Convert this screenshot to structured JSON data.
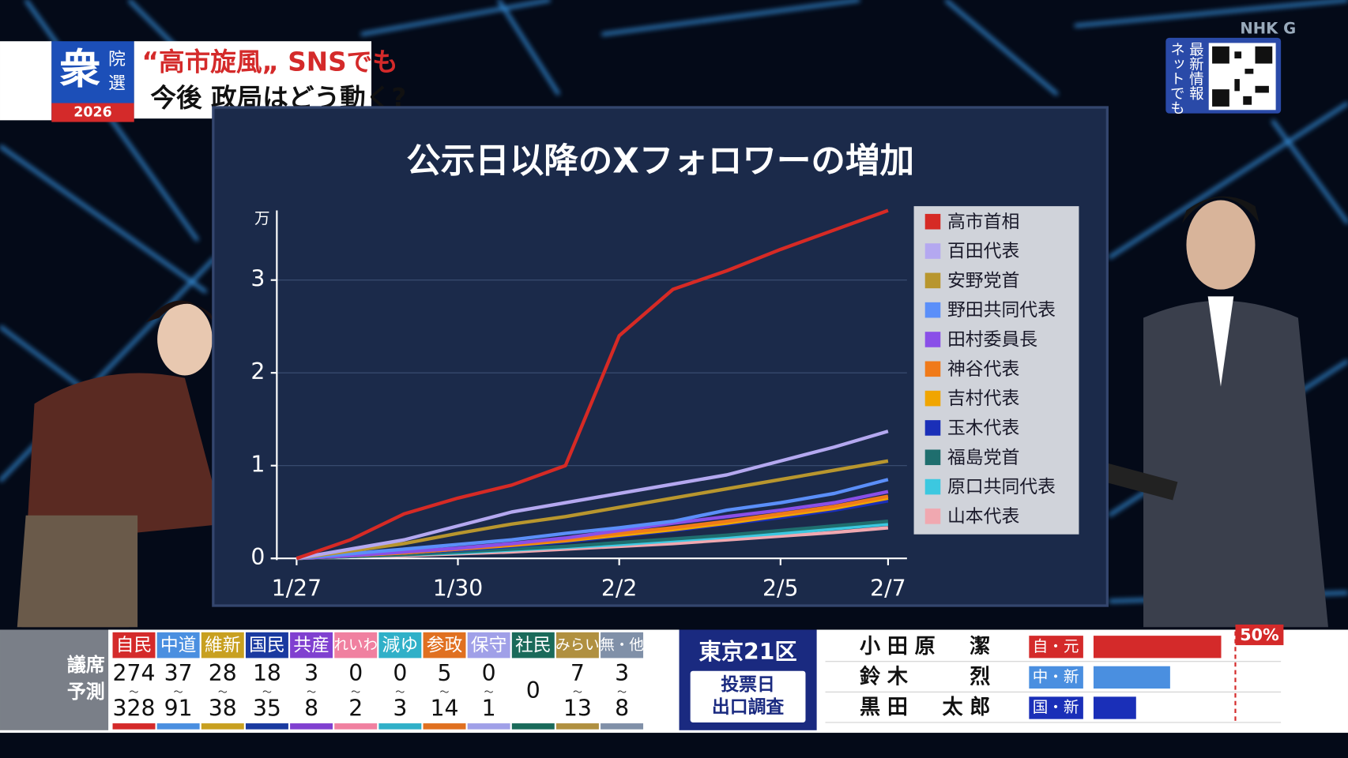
{
  "header": {
    "logo": {
      "main": "衆",
      "side": [
        "院",
        "選"
      ],
      "year": "2026"
    },
    "headline": [
      "“高市旋風„ SNSでも",
      "今後 政局はどう動く?"
    ]
  },
  "broadcaster": "NHK G",
  "qr_note": [
    "ネットでも",
    "最新情報"
  ],
  "chart_data": {
    "type": "line",
    "title": "公示日以降のXフォロワーの増加",
    "y_unit": "万",
    "categories": [
      "1/27",
      null,
      null,
      "1/30",
      null,
      null,
      "2/2",
      null,
      null,
      "2/5",
      null,
      "2/7"
    ],
    "ylim": [
      0,
      3.75
    ],
    "yticks": [
      0,
      1,
      2,
      3
    ],
    "grid": true,
    "legend": "right",
    "series": [
      {
        "name": "高市首相",
        "color": "#d62a25",
        "values": [
          0,
          0.2,
          0.48,
          0.65,
          0.79,
          1.0,
          2.4,
          2.9,
          3.1,
          3.33,
          3.54,
          3.75
        ]
      },
      {
        "name": "百田代表",
        "color": "#b4a8f0",
        "values": [
          0,
          0.1,
          0.2,
          0.35,
          0.5,
          0.6,
          0.7,
          0.8,
          0.9,
          1.05,
          1.2,
          1.37
        ]
      },
      {
        "name": "安野党首",
        "color": "#b8962e",
        "values": [
          0,
          0.08,
          0.16,
          0.27,
          0.37,
          0.45,
          0.55,
          0.65,
          0.75,
          0.85,
          0.95,
          1.05
        ]
      },
      {
        "name": "野田共同代表",
        "color": "#5b8ff9",
        "values": [
          0,
          0.05,
          0.1,
          0.15,
          0.2,
          0.27,
          0.33,
          0.4,
          0.52,
          0.6,
          0.7,
          0.85
        ]
      },
      {
        "name": "田村委員長",
        "color": "#8a4fe8",
        "values": [
          0,
          0.03,
          0.07,
          0.11,
          0.16,
          0.22,
          0.3,
          0.38,
          0.45,
          0.52,
          0.6,
          0.72
        ]
      },
      {
        "name": "神谷代表",
        "color": "#f07a1a",
        "values": [
          0,
          0.03,
          0.06,
          0.1,
          0.15,
          0.2,
          0.27,
          0.33,
          0.4,
          0.48,
          0.56,
          0.67
        ]
      },
      {
        "name": "吉村代表",
        "color": "#f0a500",
        "values": [
          0,
          0.03,
          0.06,
          0.1,
          0.14,
          0.19,
          0.25,
          0.31,
          0.38,
          0.46,
          0.54,
          0.65
        ]
      },
      {
        "name": "玉木代表",
        "color": "#1a2fb8",
        "values": [
          0,
          0.03,
          0.06,
          0.09,
          0.13,
          0.18,
          0.24,
          0.3,
          0.37,
          0.44,
          0.52,
          0.62
        ]
      },
      {
        "name": "福島党首",
        "color": "#1f6e6e",
        "values": [
          0,
          0.02,
          0.04,
          0.07,
          0.1,
          0.13,
          0.17,
          0.21,
          0.25,
          0.3,
          0.35,
          0.4
        ]
      },
      {
        "name": "原口共同代表",
        "color": "#3cc8e0",
        "values": [
          0,
          0.02,
          0.04,
          0.06,
          0.09,
          0.12,
          0.15,
          0.19,
          0.23,
          0.27,
          0.32,
          0.37
        ]
      },
      {
        "name": "山本代表",
        "color": "#f0a8b0",
        "values": [
          0,
          0.02,
          0.03,
          0.05,
          0.07,
          0.1,
          0.13,
          0.16,
          0.2,
          0.24,
          0.28,
          0.33
        ]
      }
    ]
  },
  "seat_forecast": {
    "label": [
      "議席",
      "予測"
    ],
    "separator": "〜",
    "parties": [
      {
        "name": "自民",
        "color": "#d42a2a",
        "low": 274,
        "high": 328
      },
      {
        "name": "中道",
        "color": "#4a8fe0",
        "low": 37,
        "high": 91
      },
      {
        "name": "維新",
        "color": "#c8a020",
        "low": 28,
        "high": 38
      },
      {
        "name": "国民",
        "color": "#1a3aa0",
        "low": 18,
        "high": 35
      },
      {
        "name": "共産",
        "color": "#8040d0",
        "low": 3,
        "high": 8
      },
      {
        "name": "れいわ",
        "color": "#f080a0",
        "low": 0,
        "high": 2
      },
      {
        "name": "減ゆ",
        "color": "#30b0c8",
        "low": 0,
        "high": 3
      },
      {
        "name": "参政",
        "color": "#e07020",
        "low": 5,
        "high": 14
      },
      {
        "name": "保守",
        "color": "#a0a0e8",
        "low": 0,
        "high": 1
      },
      {
        "name": "社民",
        "color": "#1a6a5a",
        "value": 0
      },
      {
        "name": "みらい",
        "color": "#b09040",
        "low": 7,
        "high": 13
      },
      {
        "name": "無・他",
        "color": "#8090a8",
        "low": 3,
        "high": 8
      }
    ]
  },
  "exit_poll": {
    "district": "東京21区",
    "button": [
      "投票日",
      "出口調査"
    ],
    "marker": {
      "value": 50,
      "label": "50%"
    },
    "candidates": [
      {
        "name": "小田原　潔",
        "party": "自・元",
        "color": "#d42a2a",
        "share": 45
      },
      {
        "name": "鈴木　　烈",
        "party": "中・新",
        "color": "#4a8fe0",
        "share": 27
      },
      {
        "name": "黒田　太郎",
        "party": "国・新",
        "color": "#1a2fb8",
        "share": 15
      }
    ]
  }
}
